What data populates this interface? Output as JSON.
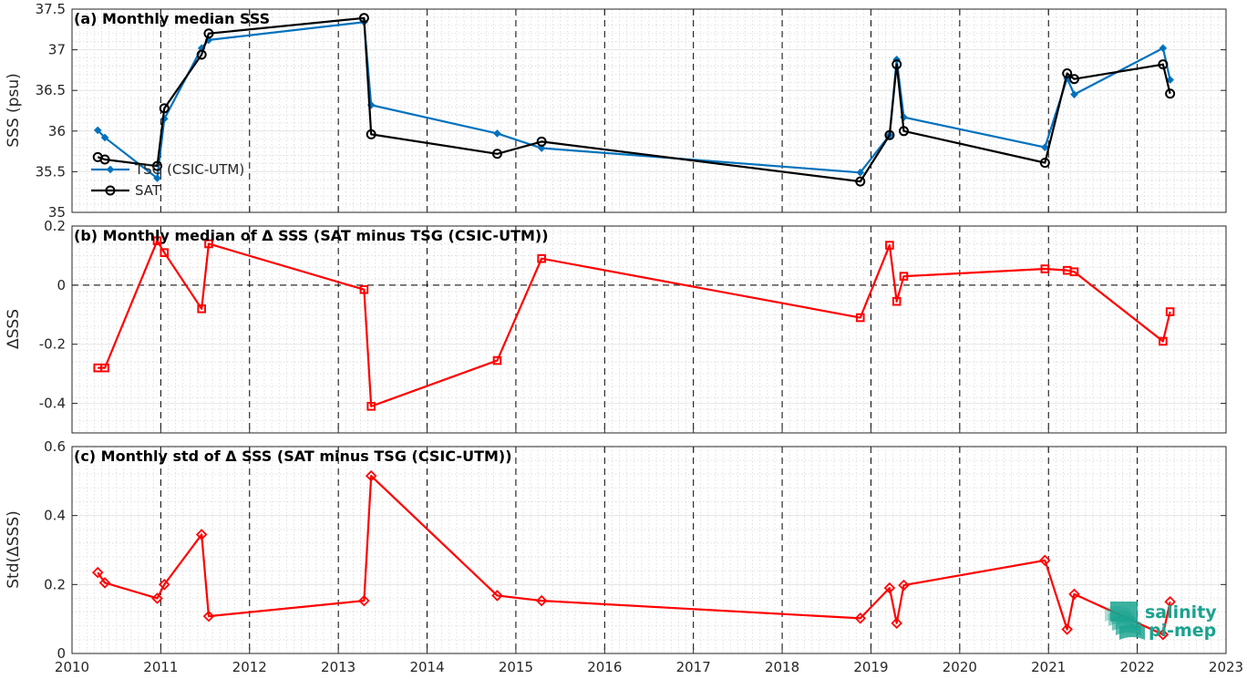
{
  "chart_data": [
    {
      "id": "a",
      "type": "line",
      "title": "(a) Monthly median SSS",
      "ylabel": "SSS (psu)",
      "xlabel": "",
      "xlim": [
        2010,
        2023
      ],
      "ylim": [
        35,
        37.5
      ],
      "yticks": [
        "35",
        "35.5",
        "36",
        "36.5",
        "37",
        "37.5"
      ],
      "grid": true,
      "legend_position": "left",
      "series": [
        {
          "name": "TSG (CSIC-UTM)",
          "color": "#0072BD",
          "marker": "diamond",
          "x": [
            2010.29,
            2010.37,
            2010.96,
            2011.04,
            2011.46,
            2011.54,
            2013.29,
            2013.37,
            2014.79,
            2015.29,
            2018.88,
            2019.21,
            2019.29,
            2019.37,
            2020.96,
            2021.21,
            2021.29,
            2022.29,
            2022.37
          ],
          "values": [
            36.01,
            35.92,
            35.42,
            36.15,
            37.02,
            37.12,
            37.34,
            36.32,
            35.97,
            35.79,
            35.49,
            35.95,
            36.88,
            36.17,
            35.8,
            36.65,
            36.45,
            37.02,
            36.63
          ]
        },
        {
          "name": "SAT",
          "color": "#000000",
          "marker": "circle",
          "x": [
            2010.29,
            2010.37,
            2010.96,
            2011.04,
            2011.46,
            2011.54,
            2013.29,
            2013.37,
            2014.79,
            2015.29,
            2018.88,
            2019.21,
            2019.29,
            2019.37,
            2020.96,
            2021.21,
            2021.29,
            2022.29,
            2022.37
          ],
          "values": [
            35.68,
            35.65,
            35.57,
            36.28,
            36.94,
            37.2,
            37.39,
            35.96,
            35.72,
            35.87,
            35.38,
            35.95,
            36.82,
            36.0,
            35.61,
            36.71,
            36.64,
            36.82,
            36.46
          ]
        }
      ]
    },
    {
      "id": "b",
      "type": "line",
      "title": "(b) Monthly median of Δ SSS (SAT minus TSG (CSIC-UTM))",
      "ylabel": "ΔSSS",
      "xlabel": "",
      "xlim": [
        2010,
        2023
      ],
      "ylim": [
        -0.5,
        0.2
      ],
      "yticks": [
        "-0.4",
        "-0.2",
        "0",
        "0.2"
      ],
      "grid": true,
      "zero_line": true,
      "series": [
        {
          "name": "",
          "color": "#FF0000",
          "marker": "square",
          "x": [
            2010.29,
            2010.37,
            2010.96,
            2011.04,
            2011.46,
            2011.54,
            2013.29,
            2013.37,
            2014.79,
            2015.29,
            2018.88,
            2019.21,
            2019.29,
            2019.37,
            2020.96,
            2021.21,
            2021.29,
            2022.29,
            2022.37
          ],
          "values": [
            -0.28,
            -0.28,
            0.15,
            0.11,
            -0.08,
            0.14,
            -0.015,
            -0.41,
            -0.255,
            0.09,
            -0.11,
            0.135,
            -0.055,
            0.03,
            0.055,
            0.05,
            0.045,
            -0.19,
            -0.09
          ]
        }
      ]
    },
    {
      "id": "c",
      "type": "line",
      "title": "(c) Monthly std of Δ SSS (SAT minus TSG (CSIC-UTM))",
      "ylabel": "Std(ΔSSS)",
      "xlabel": "",
      "xlim": [
        2010,
        2023
      ],
      "ylim": [
        0,
        0.6
      ],
      "yticks": [
        "0",
        "0.2",
        "0.4",
        "0.6"
      ],
      "xticks": [
        "2010",
        "2011",
        "2012",
        "2013",
        "2014",
        "2015",
        "2016",
        "2017",
        "2018",
        "2019",
        "2020",
        "2021",
        "2022",
        "2023"
      ],
      "grid": true,
      "series": [
        {
          "name": "",
          "color": "#FF0000",
          "marker": "diamond",
          "x": [
            2010.29,
            2010.37,
            2010.96,
            2011.04,
            2011.46,
            2011.54,
            2013.29,
            2013.37,
            2014.79,
            2015.29,
            2018.88,
            2019.21,
            2019.29,
            2019.37,
            2020.96,
            2021.21,
            2021.29,
            2022.29,
            2022.37
          ],
          "values": [
            0.235,
            0.205,
            0.16,
            0.2,
            0.345,
            0.108,
            0.153,
            0.515,
            0.168,
            0.153,
            0.102,
            0.19,
            0.088,
            0.198,
            0.27,
            0.07,
            0.172,
            0.055,
            0.15
          ]
        }
      ]
    }
  ],
  "logo": {
    "line1": "salinity",
    "line2": "pi-mep",
    "color": "#1aa38f"
  }
}
